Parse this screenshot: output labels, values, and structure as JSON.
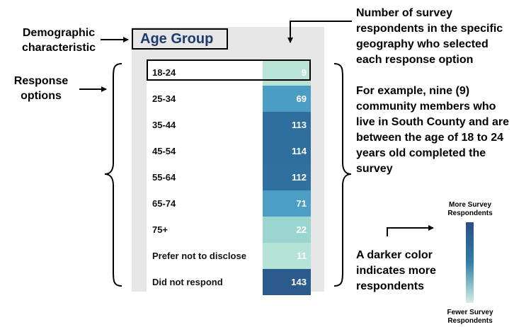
{
  "title": "Age Group",
  "labels": {
    "demographic": "Demographic characteristic",
    "response_options": "Response options",
    "count_note": "Number of survey respondents in the specific geography who selected each response option",
    "example_note": "For example, nine (9) community members who live in South County and are between the age of 18 to 24 years old completed the survey",
    "color_note": "A darker color indicates more respondents",
    "scale_top": "More Survey Respondents",
    "scale_bottom": "Fewer Survey Respondents"
  },
  "chart_data": {
    "type": "table",
    "title": "Age Group",
    "rows": [
      {
        "label": "18-24",
        "value": 9,
        "color": "#b9e3d8"
      },
      {
        "label": "25-34",
        "value": 69,
        "color": "#4a9ec4"
      },
      {
        "label": "35-44",
        "value": 113,
        "color": "#2f6fa0"
      },
      {
        "label": "45-54",
        "value": 114,
        "color": "#2f6fa0"
      },
      {
        "label": "55-64",
        "value": 112,
        "color": "#3071a2"
      },
      {
        "label": "65-74",
        "value": 71,
        "color": "#4b9fc4"
      },
      {
        "label": "75+",
        "value": 22,
        "color": "#9bd5cf"
      },
      {
        "label": "Prefer not to disclose",
        "value": 11,
        "color": "#b6e3d8"
      },
      {
        "label": "Did not respond",
        "value": 143,
        "color": "#2b5a8c"
      }
    ]
  }
}
